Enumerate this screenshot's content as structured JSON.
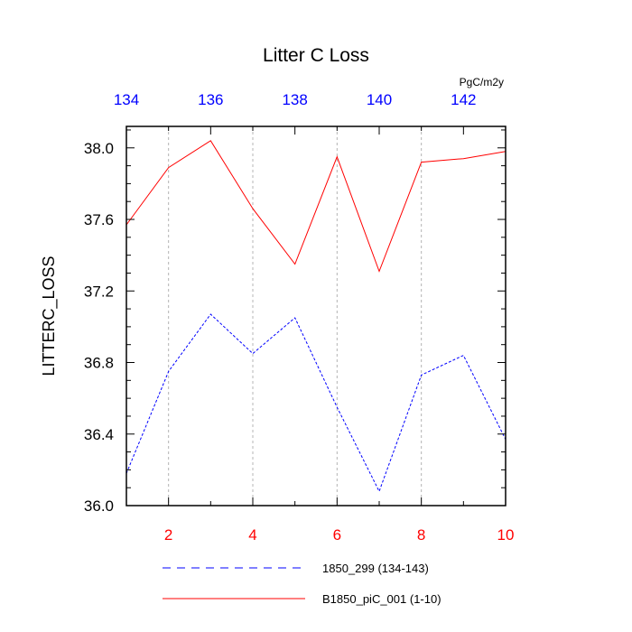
{
  "chart_data": {
    "type": "line",
    "title": "Litter C Loss",
    "units": "PgC/m2y",
    "ylabel": "LITTERC_LOSS",
    "grid": "vertical-dashed",
    "legend_placement": "bottom",
    "x_bottom": {
      "range": [
        1,
        10
      ],
      "ticks": [
        2,
        4,
        6,
        8,
        10
      ],
      "color": "#ff0000"
    },
    "x_top": {
      "range": [
        134,
        143
      ],
      "ticks": [
        134,
        136,
        138,
        140,
        142
      ],
      "color": "#0000ff"
    },
    "y": {
      "range": [
        36.0,
        38.12
      ],
      "ticks": [
        "36.0",
        "36.4",
        "36.8",
        "37.2",
        "37.6",
        "38.0"
      ]
    },
    "series": [
      {
        "name": "1850_299 (134-143)",
        "color": "#0000ff",
        "dash": "dashed",
        "axis": "top",
        "x": [
          134,
          135,
          136,
          137,
          138,
          139,
          140,
          141,
          142,
          143
        ],
        "values": [
          36.18,
          36.75,
          37.07,
          36.85,
          37.05,
          36.55,
          36.08,
          36.73,
          36.84,
          36.37
        ]
      },
      {
        "name": "B1850_piC_001 (1-10)",
        "color": "#ff0000",
        "dash": "solid",
        "axis": "bottom",
        "x": [
          1,
          2,
          3,
          4,
          5,
          6,
          7,
          8,
          9,
          10
        ],
        "values": [
          37.57,
          37.89,
          38.04,
          37.66,
          37.35,
          37.95,
          37.31,
          37.92,
          37.94,
          37.98
        ]
      }
    ]
  }
}
